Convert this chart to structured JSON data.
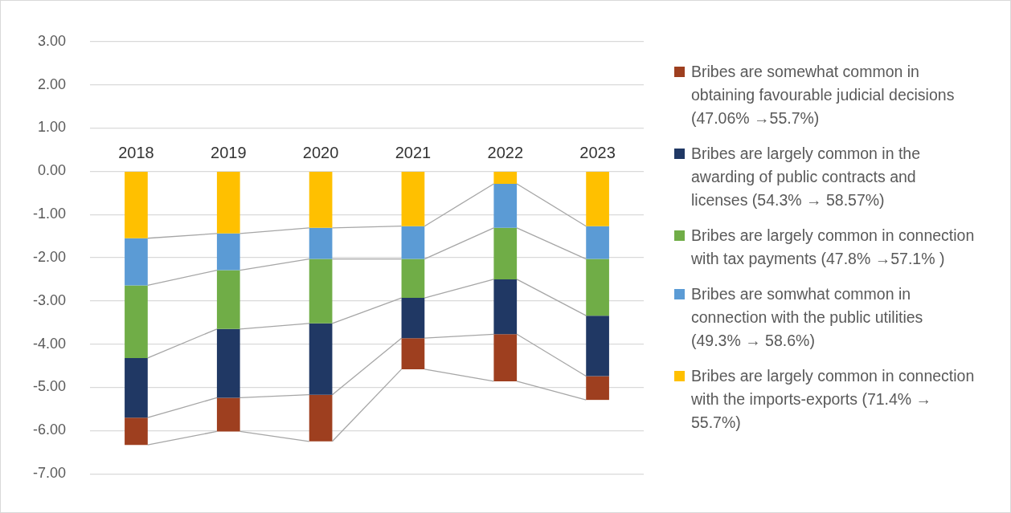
{
  "chart_data": {
    "type": "bar",
    "stacked": true,
    "categories": [
      "2018",
      "2019",
      "2020",
      "2021",
      "2022",
      "2023"
    ],
    "series": [
      {
        "name": "Bribes are largely common in connection with the imports-exports (71.4% → 55.7%)",
        "color": "#ffc000",
        "values": [
          -1.55,
          -1.44,
          -1.31,
          -1.27,
          -0.29,
          -1.27
        ]
      },
      {
        "name": "Bribes are somwhat common in connection with the public utilities (49.3% → 58.6%)",
        "color": "#5b9bd5",
        "values": [
          -1.09,
          -0.85,
          -0.72,
          -0.76,
          -1.02,
          -0.76
        ]
      },
      {
        "name": "Bribes are largely common in connection with tax payments (47.8% →57.1% )",
        "color": "#70ad47",
        "values": [
          -1.68,
          -1.36,
          -1.49,
          -0.9,
          -1.19,
          -1.31
        ]
      },
      {
        "name": "Bribes are largely common in the awarding of public contracts and licenses (54.3% → 58.57%)",
        "color": "#203864",
        "values": [
          -1.38,
          -1.59,
          -1.65,
          -0.93,
          -1.27,
          -1.4
        ]
      },
      {
        "name": "Bribes are somewhat common in obtaining favourable judicial decisions (47.06% →55.7%)",
        "color": "#9e3f1f",
        "values": [
          -0.63,
          -0.78,
          -1.08,
          -0.72,
          -1.09,
          -0.55
        ]
      }
    ],
    "ylim": [
      -7,
      3
    ],
    "yticks": [
      {
        "value": 3,
        "label": "3.00"
      },
      {
        "value": 2,
        "label": "2.00"
      },
      {
        "value": 1,
        "label": "1.00"
      },
      {
        "value": 0,
        "label": "0.00"
      },
      {
        "value": -1,
        "label": "-1.00"
      },
      {
        "value": -2,
        "label": "-2.00"
      },
      {
        "value": -3,
        "label": "-3.00"
      },
      {
        "value": -4,
        "label": "-4.00"
      },
      {
        "value": -5,
        "label": "-5.00"
      },
      {
        "value": -6,
        "label": "-6.00"
      },
      {
        "value": -7,
        "label": "-7.00"
      }
    ],
    "grid": "y",
    "legend": "right"
  }
}
